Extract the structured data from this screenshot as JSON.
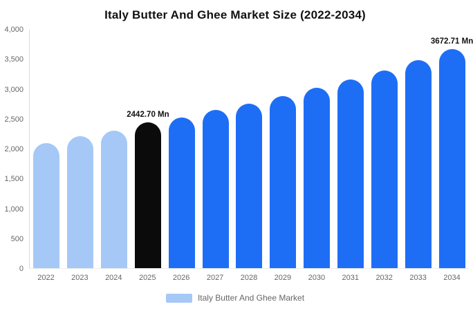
{
  "legend": {
    "label": "Italy Butter And Ghee Market",
    "swatch_color": "#a5c8f7"
  },
  "colors": {
    "historical_bar": "#a5c8f7",
    "base_year_bar": "#0b0b0b",
    "forecast_bar": "#1e6ef5",
    "axis_text": "#666666",
    "title_text": "#111111"
  },
  "chart_data": {
    "type": "bar",
    "title": "Italy Butter And Ghee Market Size (2022-2034)",
    "xlabel": "",
    "ylabel": "",
    "ylim": [
      0,
      4000
    ],
    "grid": false,
    "legend_position": "bottom",
    "categories": [
      "2022",
      "2023",
      "2024",
      "2025",
      "2026",
      "2027",
      "2028",
      "2029",
      "2030",
      "2031",
      "2032",
      "2033",
      "2034"
    ],
    "values": [
      2100,
      2210,
      2310,
      2442.7,
      2530,
      2650,
      2760,
      2890,
      3030,
      3170,
      3320,
      3490,
      3672.71
    ],
    "bar_colors": [
      "#a5c8f7",
      "#a5c8f7",
      "#a5c8f7",
      "#0b0b0b",
      "#1e6ef5",
      "#1e6ef5",
      "#1e6ef5",
      "#1e6ef5",
      "#1e6ef5",
      "#1e6ef5",
      "#1e6ef5",
      "#1e6ef5",
      "#1e6ef5"
    ],
    "annotations": [
      {
        "index": 3,
        "text": "2442.70 Mn"
      },
      {
        "index": 12,
        "text": "3672.71 Mn"
      }
    ],
    "yticks": [
      {
        "value": 0,
        "label": "0"
      },
      {
        "value": 500,
        "label": "500"
      },
      {
        "value": 1000,
        "label": "1,000"
      },
      {
        "value": 1500,
        "label": "1,500"
      },
      {
        "value": 2000,
        "label": "2,000"
      },
      {
        "value": 2500,
        "label": "2,500"
      },
      {
        "value": 3000,
        "label": "3,000"
      },
      {
        "value": 3500,
        "label": "3,500"
      },
      {
        "value": 4000,
        "label": "4,000"
      }
    ]
  }
}
